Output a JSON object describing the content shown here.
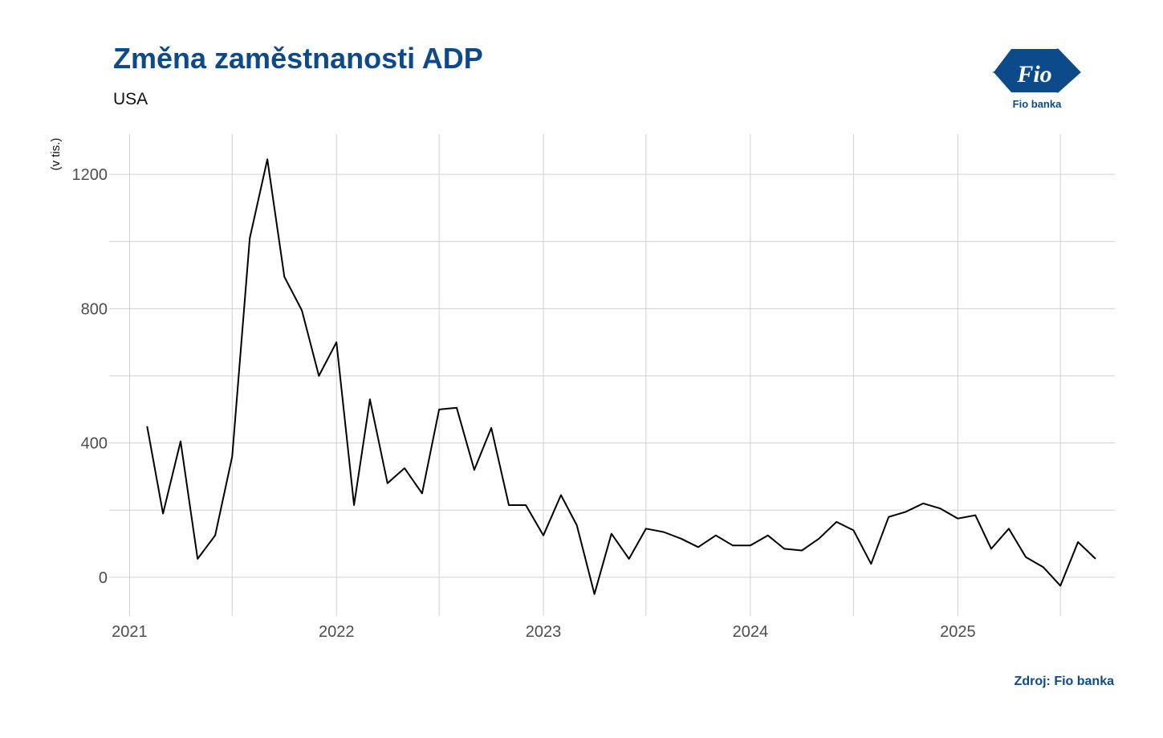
{
  "header": {
    "title": "Změna zaměstnanosti ADP",
    "subtitle": "USA"
  },
  "logo": {
    "icon": "fio-flag-logo",
    "mark_text": "Fio",
    "caption": "Fio banka",
    "color": "#0d4a8a"
  },
  "footer": {
    "source": "Zdroj: Fio banka"
  },
  "colors": {
    "accent": "#0d4a8a",
    "line": "#000000",
    "grid": "#d0d0d0",
    "tick_text": "#4d4d4d"
  },
  "chart_data": {
    "type": "line",
    "title": "Změna zaměstnanosti ADP",
    "subtitle": "USA",
    "ylabel": "(v tis.)",
    "xlabel": "",
    "x_ticks": [
      "2021",
      "2022",
      "2023",
      "2024",
      "2025"
    ],
    "y_ticks": [
      0,
      400,
      800,
      1200
    ],
    "ylim": [
      -115,
      1320
    ],
    "xlim": [
      "2020-11-26",
      "2025-10-05"
    ],
    "grid": true,
    "legend": "none",
    "series": [
      {
        "x": [
          "2021-02-01",
          "2021-03-01",
          "2021-04-01",
          "2021-05-01",
          "2021-06-01",
          "2021-07-01",
          "2021-08-01",
          "2021-09-01",
          "2021-10-01",
          "2021-11-01",
          "2021-12-01",
          "2022-01-01",
          "2022-02-01",
          "2022-03-01",
          "2022-04-01",
          "2022-05-01",
          "2022-06-01",
          "2022-07-01",
          "2022-08-01",
          "2022-09-01",
          "2022-10-01",
          "2022-11-01",
          "2022-12-01",
          "2023-01-01",
          "2023-02-01",
          "2023-03-01",
          "2023-04-01",
          "2023-05-01",
          "2023-06-01",
          "2023-07-01",
          "2023-08-01",
          "2023-09-01",
          "2023-10-01",
          "2023-11-01",
          "2023-12-01",
          "2024-01-01",
          "2024-02-01",
          "2024-03-01",
          "2024-04-01",
          "2024-05-01",
          "2024-06-01",
          "2024-07-01",
          "2024-08-01",
          "2024-09-01",
          "2024-10-01",
          "2024-11-01",
          "2024-12-01",
          "2025-01-01",
          "2025-02-01",
          "2025-03-01",
          "2025-04-01",
          "2025-05-01",
          "2025-06-01",
          "2025-07-01",
          "2025-08-01",
          "2025-09-01"
        ],
        "values": [
          450,
          190,
          405,
          55,
          125,
          360,
          1010,
          1245,
          895,
          795,
          600,
          700,
          215,
          530,
          280,
          325,
          250,
          500,
          505,
          320,
          445,
          215,
          215,
          125,
          245,
          155,
          -50,
          130,
          55,
          145,
          135,
          115,
          90,
          125,
          95,
          95,
          125,
          85,
          80,
          115,
          165,
          140,
          40,
          180,
          195,
          220,
          205,
          175,
          185,
          85,
          145,
          60,
          30,
          -25,
          105,
          55
        ]
      }
    ]
  }
}
